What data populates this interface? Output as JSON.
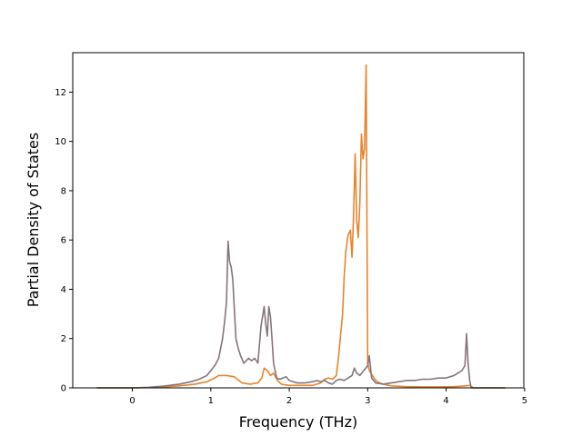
{
  "chart_data": {
    "type": "line",
    "title": "",
    "xlabel": "Frequency (THz)",
    "ylabel": "Partial Density of States",
    "xlim": [
      -0.76,
      4.99
    ],
    "ylim": [
      0,
      13.6
    ],
    "xticks": [
      0,
      1,
      2,
      3,
      4,
      5
    ],
    "yticks": [
      0,
      2,
      4,
      6,
      8,
      10,
      12
    ],
    "xtick_labels": [
      "0",
      "1",
      "2",
      "3",
      "4",
      "5"
    ],
    "ytick_labels": [
      "0",
      "2",
      "4",
      "6",
      "8",
      "10",
      "12"
    ],
    "grid": false,
    "legend": "none",
    "series": [
      {
        "color": "#e8842c",
        "x": [
          -0.45,
          0.0,
          0.2,
          0.4,
          0.6,
          0.8,
          0.95,
          1.05,
          1.1,
          1.2,
          1.3,
          1.4,
          1.5,
          1.6,
          1.65,
          1.68,
          1.72,
          1.76,
          1.8,
          1.85,
          1.9,
          2.0,
          2.1,
          2.2,
          2.3,
          2.4,
          2.45,
          2.5,
          2.55,
          2.6,
          2.62,
          2.65,
          2.68,
          2.7,
          2.72,
          2.75,
          2.78,
          2.8,
          2.82,
          2.84,
          2.86,
          2.88,
          2.9,
          2.92,
          2.94,
          2.96,
          2.98,
          3.0,
          3.02,
          3.04,
          3.06,
          3.1,
          3.15,
          3.2,
          3.3,
          3.5,
          3.7,
          3.9,
          4.1,
          4.25,
          4.3,
          4.35,
          4.75
        ],
        "y": [
          0.0,
          0.0,
          0.01,
          0.04,
          0.08,
          0.15,
          0.25,
          0.4,
          0.5,
          0.5,
          0.45,
          0.2,
          0.15,
          0.2,
          0.4,
          0.8,
          0.7,
          0.5,
          0.6,
          0.3,
          0.15,
          0.1,
          0.1,
          0.1,
          0.1,
          0.2,
          0.35,
          0.4,
          0.35,
          0.5,
          1.0,
          2.0,
          3.0,
          4.5,
          5.5,
          6.2,
          6.4,
          5.3,
          7.0,
          9.5,
          6.8,
          6.1,
          7.5,
          10.3,
          9.3,
          9.7,
          13.1,
          1.0,
          0.7,
          0.6,
          0.5,
          0.3,
          0.2,
          0.15,
          0.08,
          0.05,
          0.04,
          0.04,
          0.05,
          0.08,
          0.1,
          0.0,
          0.0
        ]
      },
      {
        "color": "#857579",
        "x": [
          -0.45,
          0.0,
          0.2,
          0.4,
          0.6,
          0.75,
          0.85,
          0.95,
          1.0,
          1.05,
          1.1,
          1.15,
          1.18,
          1.2,
          1.22,
          1.24,
          1.26,
          1.28,
          1.3,
          1.32,
          1.35,
          1.38,
          1.42,
          1.48,
          1.52,
          1.56,
          1.6,
          1.64,
          1.68,
          1.7,
          1.72,
          1.74,
          1.76,
          1.78,
          1.8,
          1.84,
          1.88,
          1.92,
          1.96,
          2.0,
          2.1,
          2.2,
          2.3,
          2.35,
          2.4,
          2.45,
          2.5,
          2.55,
          2.6,
          2.65,
          2.7,
          2.75,
          2.8,
          2.83,
          2.86,
          2.9,
          2.95,
          3.0,
          3.02,
          3.05,
          3.1,
          3.2,
          3.3,
          3.4,
          3.5,
          3.6,
          3.7,
          3.8,
          3.9,
          4.0,
          4.1,
          4.15,
          4.2,
          4.24,
          4.26,
          4.28,
          4.3,
          4.32,
          4.75
        ],
        "y": [
          0.0,
          0.0,
          0.02,
          0.07,
          0.15,
          0.25,
          0.35,
          0.5,
          0.7,
          0.9,
          1.2,
          2.0,
          2.8,
          3.5,
          5.95,
          5.1,
          4.9,
          4.4,
          3.2,
          2.0,
          1.6,
          1.3,
          1.0,
          1.2,
          1.1,
          1.2,
          1.0,
          2.5,
          3.3,
          2.6,
          2.1,
          3.3,
          2.9,
          2.0,
          1.0,
          0.4,
          0.35,
          0.4,
          0.45,
          0.3,
          0.2,
          0.2,
          0.25,
          0.3,
          0.25,
          0.3,
          0.2,
          0.15,
          0.3,
          0.35,
          0.3,
          0.4,
          0.5,
          0.8,
          0.6,
          0.5,
          0.7,
          0.9,
          1.3,
          0.4,
          0.2,
          0.15,
          0.2,
          0.25,
          0.3,
          0.3,
          0.35,
          0.35,
          0.4,
          0.4,
          0.5,
          0.6,
          0.7,
          0.9,
          2.2,
          1.0,
          0.3,
          0.0,
          0.0
        ]
      }
    ]
  }
}
